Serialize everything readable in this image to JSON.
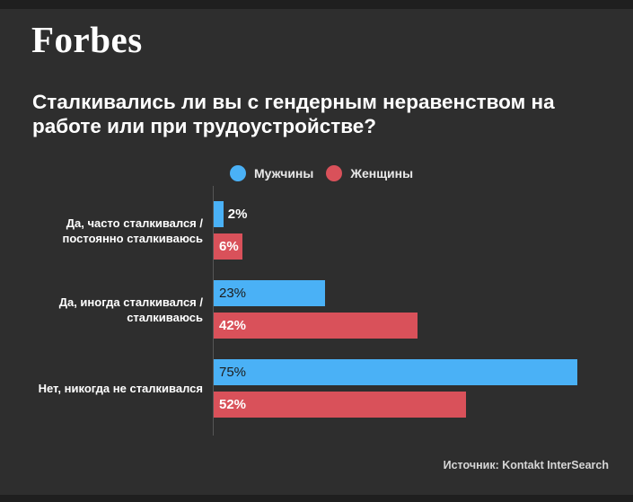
{
  "brand": {
    "logo_text": "Forbes"
  },
  "chart_data": {
    "type": "bar",
    "orientation": "horizontal",
    "title": "Сталкивались ли вы с гендерным неравенством на работе или при трудоустройстве?",
    "categories": [
      "Да, часто сталкивался / постоянно сталкиваюсь",
      "Да, иногда сталкивался / сталкиваюсь",
      "Нет, никогда не сталкивался"
    ],
    "series": [
      {
        "name": "Мужчины",
        "color": "#4ab1f6",
        "value_label_color": "#1c1c1c",
        "value_label_bold": false,
        "values": [
          2,
          23,
          75
        ]
      },
      {
        "name": "Женщины",
        "color": "#d9515a",
        "value_label_color": "#ffffff",
        "value_label_bold": true,
        "values": [
          6,
          42,
          52
        ]
      }
    ],
    "value_suffix": "%",
    "xlim": [
      0,
      100
    ],
    "legend_position": "top",
    "grid": false
  },
  "footer": {
    "source": "Источник: Kontakt InterSearch"
  },
  "theme": {
    "background": "#2e2e2e",
    "edge_strip": "#1f1f1f",
    "axis_line": "#565656",
    "text": "#ffffff"
  }
}
